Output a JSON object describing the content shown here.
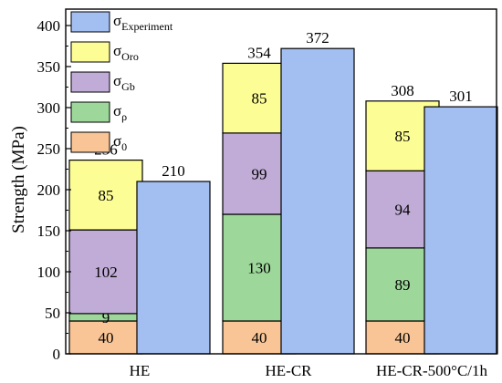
{
  "chart_data": {
    "type": "bar",
    "stacked": true,
    "title": "",
    "xlabel": "",
    "ylabel": "Strength (MPa)",
    "ylim": [
      0,
      420
    ],
    "yticks": [
      0,
      50,
      100,
      150,
      200,
      250,
      300,
      350,
      400
    ],
    "categories": [
      "HE",
      "HE-CR",
      "HE-CR-500°C/1h"
    ],
    "stack_series": [
      {
        "id": "s0",
        "name_base": "σ",
        "name_sub": "0",
        "color": "#f9c596",
        "values": [
          40,
          40,
          40
        ],
        "labels": [
          "40",
          "40",
          "40"
        ]
      },
      {
        "id": "srho",
        "name_base": "σ",
        "name_sub": "ρ",
        "color": "#9dd79a",
        "values": [
          9,
          130,
          89
        ],
        "labels": [
          "9",
          "130",
          "89"
        ]
      },
      {
        "id": "sgb",
        "name_base": "σ",
        "name_sub": "Gb",
        "color": "#c1acd7",
        "values": [
          102,
          99,
          94
        ],
        "labels": [
          "102",
          "99",
          "94"
        ]
      },
      {
        "id": "soro",
        "name_base": "σ",
        "name_sub": "Oro",
        "color": "#fdfd96",
        "values": [
          85,
          85,
          85
        ],
        "labels": [
          "85",
          "85",
          "85"
        ]
      }
    ],
    "stack_totals": [
      "236",
      "354",
      "308"
    ],
    "experiment": {
      "id": "sexp",
      "name_base": "σ",
      "name_sub": "Experiment",
      "color": "#a3bff2",
      "values": [
        210,
        372,
        301
      ],
      "labels": [
        "210",
        "372",
        "301"
      ]
    },
    "legend": {
      "placement": "top-left",
      "order": [
        "sexp",
        "soro",
        "sgb",
        "srho",
        "s0"
      ]
    }
  }
}
